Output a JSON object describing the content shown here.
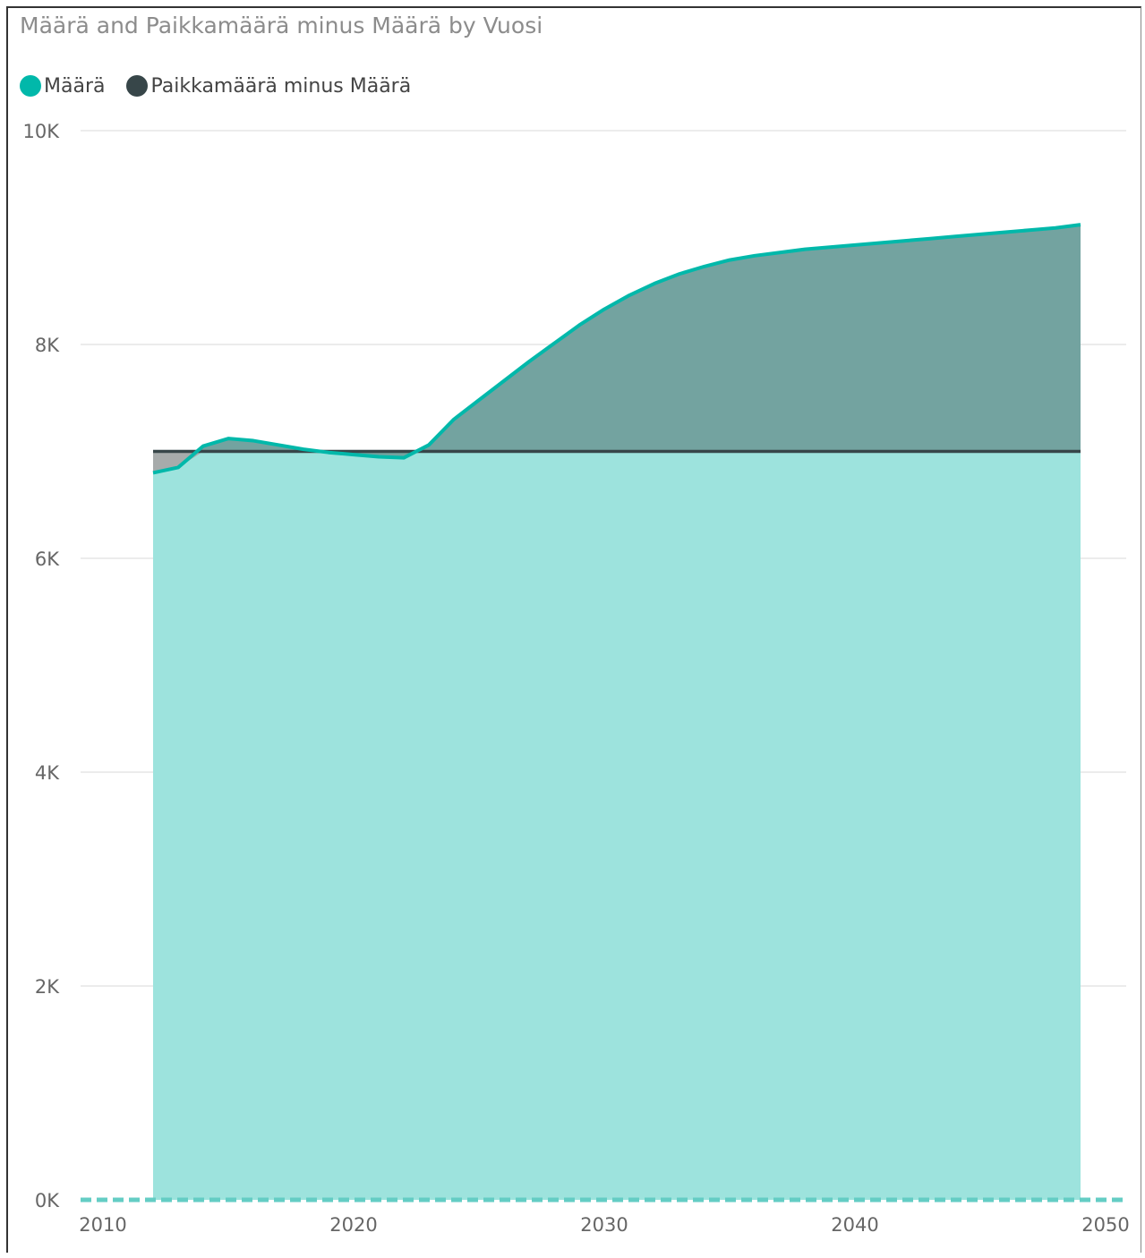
{
  "chart_data": {
    "type": "area",
    "title": "Määrä and Paikkamäärä minus Määrä by Vuosi",
    "xlabel": "",
    "ylabel": "",
    "x": [
      2012,
      2013,
      2014,
      2015,
      2016,
      2017,
      2018,
      2019,
      2020,
      2021,
      2022,
      2023,
      2024,
      2025,
      2026,
      2027,
      2028,
      2029,
      2030,
      2031,
      2032,
      2033,
      2034,
      2035,
      2036,
      2037,
      2038,
      2039,
      2040,
      2041,
      2042,
      2043,
      2044,
      2045,
      2046,
      2047,
      2048,
      2049
    ],
    "series": [
      {
        "name": "Määrä",
        "color": "#01B8AA",
        "values": [
          6800,
          6850,
          7050,
          7120,
          7100,
          7060,
          7020,
          6990,
          6970,
          6950,
          6940,
          7060,
          7300,
          7480,
          7660,
          7840,
          8010,
          8180,
          8330,
          8460,
          8570,
          8660,
          8730,
          8790,
          8830,
          8860,
          8890,
          8910,
          8930,
          8950,
          8970,
          8990,
          9010,
          9030,
          9050,
          9070,
          9090,
          9120
        ]
      },
      {
        "name": "Paikkamäärä minus Määrä",
        "color": "#374649",
        "values": [
          7000,
          7000,
          7000,
          7000,
          7000,
          7000,
          7000,
          7000,
          7000,
          7000,
          7000,
          7000,
          7000,
          7000,
          7000,
          7000,
          7000,
          7000,
          7000,
          7000,
          7000,
          7000,
          7000,
          7000,
          7000,
          7000,
          7000,
          7000,
          7000,
          7000,
          7000,
          7000,
          7000,
          7000,
          7000,
          7000,
          7000,
          7000
        ]
      }
    ],
    "xlim": [
      2010,
      2050
    ],
    "ylim": [
      0,
      10000
    ],
    "x_ticks": [
      "2010",
      "2020",
      "2030",
      "2040",
      "2050"
    ],
    "x_tick_values": [
      2010,
      2020,
      2030,
      2040,
      2050
    ],
    "y_ticks": [
      "0K",
      "2K",
      "4K",
      "6K",
      "8K",
      "10K"
    ],
    "y_tick_values": [
      0,
      2000,
      4000,
      6000,
      8000,
      10000
    ],
    "grid": true,
    "legend_position": "top-left"
  },
  "colors": {
    "maara_fill": "#9DE3DD",
    "gap_fill": "#73A3A0",
    "deficit_fill": "#A7ABAB",
    "gridline": "#E6E6E6"
  }
}
